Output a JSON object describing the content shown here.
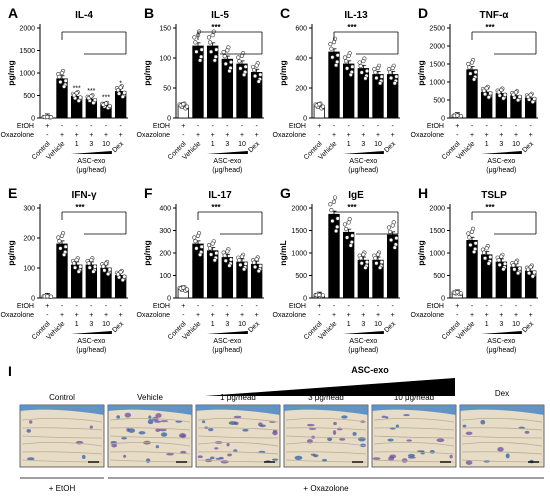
{
  "row_labels": {
    "etoh": "EtOH",
    "oxazolone": "Oxazolone",
    "dose_label": "ASC-exo",
    "dose_unit": "(μg/head)"
  },
  "categories": [
    "Control",
    "Vehicle",
    "1",
    "3",
    "10",
    "Dex"
  ],
  "etoh_row": [
    "+",
    "-",
    "-",
    "-",
    "-",
    "-"
  ],
  "oxazolone_row": [
    "-",
    "+",
    "+",
    "+",
    "+",
    "+"
  ],
  "bar_colors": {
    "control": "#ffffff",
    "treated": "#000000"
  },
  "chart_data": [
    {
      "type": "bar",
      "letter": "A",
      "title": "IL-4",
      "ylabel": "pg/mg",
      "yticks": [
        "0",
        "500",
        "1000",
        "1500",
        "2000"
      ],
      "ylim": [
        0,
        2000
      ],
      "categories": [
        "Control",
        "Vehicle",
        "1",
        "3",
        "10",
        "Dex"
      ],
      "values": [
        20,
        870,
        480,
        420,
        280,
        590
      ],
      "significance": [
        "",
        "",
        "***",
        "***",
        "***",
        "*"
      ],
      "bracket": ""
    },
    {
      "type": "bar",
      "letter": "B",
      "title": "IL-5",
      "ylabel": "pg/mg",
      "yticks": [
        "0",
        "50",
        "100",
        "150"
      ],
      "ylim": [
        0,
        150
      ],
      "categories": [
        "Control",
        "Vehicle",
        "1",
        "3",
        "10",
        "Dex"
      ],
      "values": [
        20,
        120,
        120,
        98,
        90,
        76
      ],
      "significance": [
        "",
        "",
        "",
        "",
        "",
        ""
      ],
      "bracket": "***"
    },
    {
      "type": "bar",
      "letter": "C",
      "title": "IL-13",
      "ylabel": "pg/mg",
      "yticks": [
        "0",
        "200",
        "400",
        "600"
      ],
      "ylim": [
        0,
        600
      ],
      "categories": [
        "Control",
        "Vehicle",
        "1",
        "3",
        "10",
        "Dex"
      ],
      "values": [
        80,
        440,
        360,
        330,
        290,
        290
      ],
      "significance": [
        "",
        "",
        "",
        "",
        "",
        ""
      ],
      "bracket": "***"
    },
    {
      "type": "bar",
      "letter": "D",
      "title": "TNF-α",
      "ylabel": "pg/mg",
      "yticks": [
        "0",
        "500",
        "1000",
        "1500",
        "2000",
        "2500"
      ],
      "ylim": [
        0,
        2500
      ],
      "categories": [
        "Control",
        "Vehicle",
        "1",
        "3",
        "10",
        "Dex"
      ],
      "values": [
        60,
        1340,
        720,
        680,
        620,
        560
      ],
      "significance": [
        "",
        "",
        "",
        "",
        "",
        ""
      ],
      "bracket": "***"
    },
    {
      "type": "bar",
      "letter": "E",
      "title": "IFN-γ",
      "ylabel": "pg/mg",
      "yticks": [
        "0",
        "100",
        "200",
        "300"
      ],
      "ylim": [
        0,
        300
      ],
      "categories": [
        "Control",
        "Vehicle",
        "1",
        "3",
        "10",
        "Dex"
      ],
      "values": [
        5,
        180,
        110,
        110,
        100,
        75
      ],
      "significance": [
        "",
        "",
        "",
        "",
        "",
        ""
      ],
      "bracket": "***"
    },
    {
      "type": "bar",
      "letter": "F",
      "title": "IL-17",
      "ylabel": "pg/mg",
      "yticks": [
        "0",
        "100",
        "200",
        "300",
        "400"
      ],
      "ylim": [
        0,
        400
      ],
      "categories": [
        "Control",
        "Vehicle",
        "1",
        "3",
        "10",
        "Dex"
      ],
      "values": [
        40,
        240,
        210,
        180,
        160,
        150
      ],
      "significance": [
        "",
        "",
        "",
        "",
        "",
        ""
      ],
      "bracket": "***"
    },
    {
      "type": "bar",
      "letter": "G",
      "title": "IgE",
      "ylabel": "ng/mL",
      "yticks": [
        "0",
        "500",
        "1000",
        "1500",
        "2000"
      ],
      "ylim": [
        0,
        2000
      ],
      "categories": [
        "Control",
        "Vehicle",
        "1",
        "3",
        "10",
        "Dex"
      ],
      "values": [
        60,
        1860,
        1460,
        840,
        840,
        1400
      ],
      "significance": [
        "",
        "",
        "",
        "",
        "",
        ""
      ],
      "bracket": "***"
    },
    {
      "type": "bar",
      "letter": "H",
      "title": "TSLP",
      "ylabel": "pg/mg",
      "yticks": [
        "0",
        "500",
        "1000",
        "1500",
        "2000"
      ],
      "ylim": [
        0,
        2000
      ],
      "categories": [
        "Control",
        "Vehicle",
        "1",
        "3",
        "10",
        "Dex"
      ],
      "values": [
        110,
        1280,
        960,
        800,
        690,
        600
      ],
      "significance": [
        "",
        "",
        "",
        "",
        "",
        ""
      ],
      "bracket": "***"
    }
  ],
  "histology": {
    "letter": "I",
    "header": "ASC-exo",
    "panels": [
      {
        "label": "Control",
        "style": "control"
      },
      {
        "label": "Vehicle",
        "style": "dense"
      },
      {
        "label": "1 μg/head",
        "style": "dense"
      },
      {
        "label": "3 μg/head",
        "style": "medium"
      },
      {
        "label": "10 μg/head",
        "style": "medium"
      },
      {
        "label": "Dex",
        "style": "light"
      }
    ],
    "footer_etoh": "+ EtOH",
    "footer_oxazolone": "+ Oxazolone"
  }
}
